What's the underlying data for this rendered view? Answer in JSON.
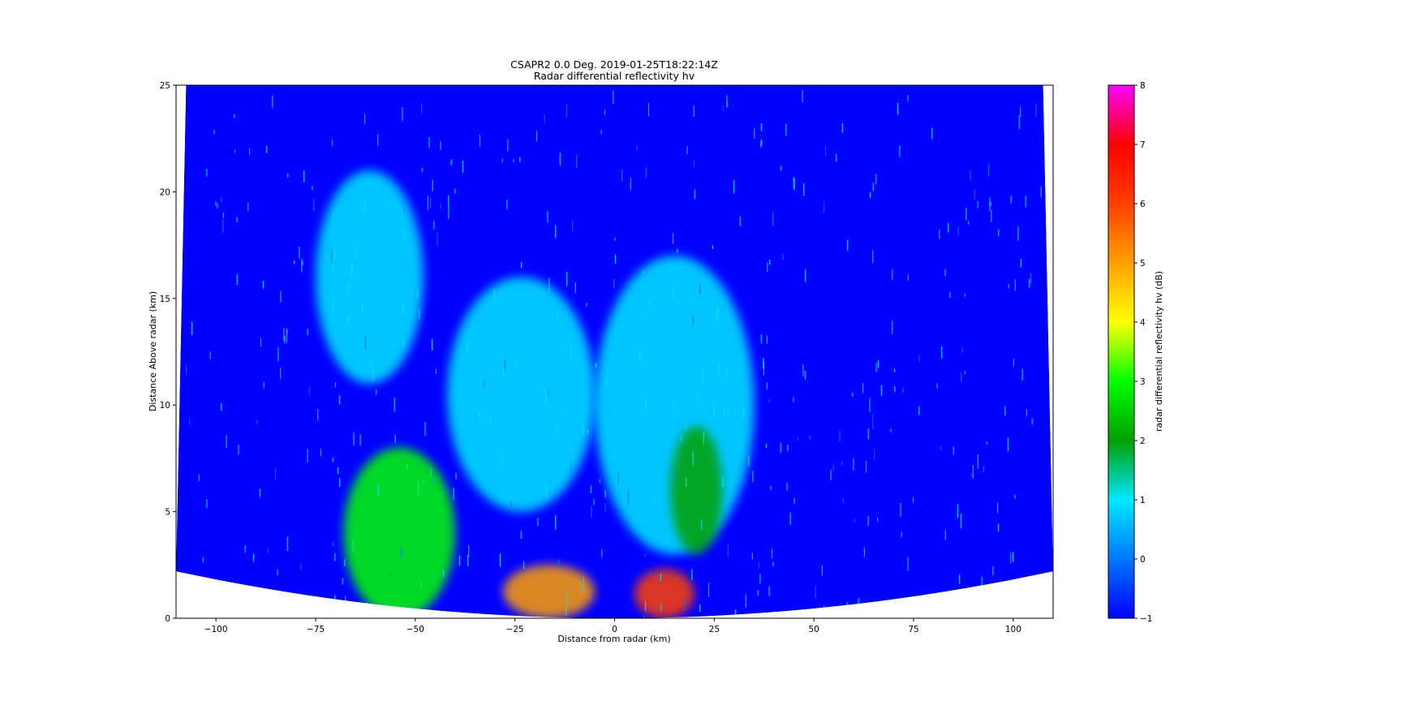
{
  "chart_data": {
    "type": "heatmap",
    "title": "CSAPR2 0.0 Deg. 2019-01-25T18:22:14Z",
    "subtitle": "Radar differential reflectivity hv",
    "xlabel": "Distance from radar (km)",
    "ylabel": "Distance Above radar  (km)",
    "xlim": [
      -110,
      110
    ],
    "ylim": [
      0,
      25
    ],
    "xticks": [
      -100,
      -75,
      -50,
      -25,
      0,
      25,
      50,
      75,
      100
    ],
    "xtick_labels": [
      "−100",
      "−75",
      "−50",
      "−25",
      "0",
      "25",
      "50",
      "75",
      "100"
    ],
    "yticks": [
      0,
      5,
      10,
      15,
      20,
      25
    ],
    "ytick_labels": [
      "0",
      "5",
      "10",
      "15",
      "20",
      "25"
    ],
    "colorbar": {
      "label": "radar differential reflectivity hv (dB)",
      "range": [
        -1,
        8
      ],
      "ticks": [
        -1,
        0,
        1,
        2,
        3,
        4,
        5,
        6,
        7,
        8
      ],
      "tick_labels": [
        "−1",
        "0",
        "1",
        "2",
        "3",
        "4",
        "5",
        "6",
        "7",
        "8"
      ],
      "colors": [
        "#0000ff",
        "#0078ff",
        "#00e8ff",
        "#00a000",
        "#00ff00",
        "#ffff00",
        "#ffa000",
        "#ff4000",
        "#ff0000",
        "#ff00ff"
      ]
    },
    "background_value": -1,
    "regions": [
      {
        "name": "upper-left-echo",
        "x": [
          -75,
          -48
        ],
        "y": [
          11,
          21
        ],
        "value": 0.6
      },
      {
        "name": "central-echo-left",
        "x": [
          -42,
          -5
        ],
        "y": [
          5,
          16
        ],
        "value": 0.7
      },
      {
        "name": "central-echo-right",
        "x": [
          -5,
          35
        ],
        "y": [
          3,
          17
        ],
        "value": 0.6
      },
      {
        "name": "low-level-left-core",
        "x": [
          -28,
          -5
        ],
        "y": [
          0,
          2.5
        ],
        "value": 4.5
      },
      {
        "name": "low-level-right-core",
        "x": [
          5,
          20
        ],
        "y": [
          0,
          2.3
        ],
        "value": 5.5
      },
      {
        "name": "left-rain-bands",
        "x": [
          -68,
          -40
        ],
        "y": [
          0,
          8
        ],
        "value": 2.5
      },
      {
        "name": "right-side-cell",
        "x": [
          14,
          27
        ],
        "y": [
          3,
          9
        ],
        "value": 2.0
      }
    ],
    "grid": false,
    "legend": "colorbar-right"
  }
}
